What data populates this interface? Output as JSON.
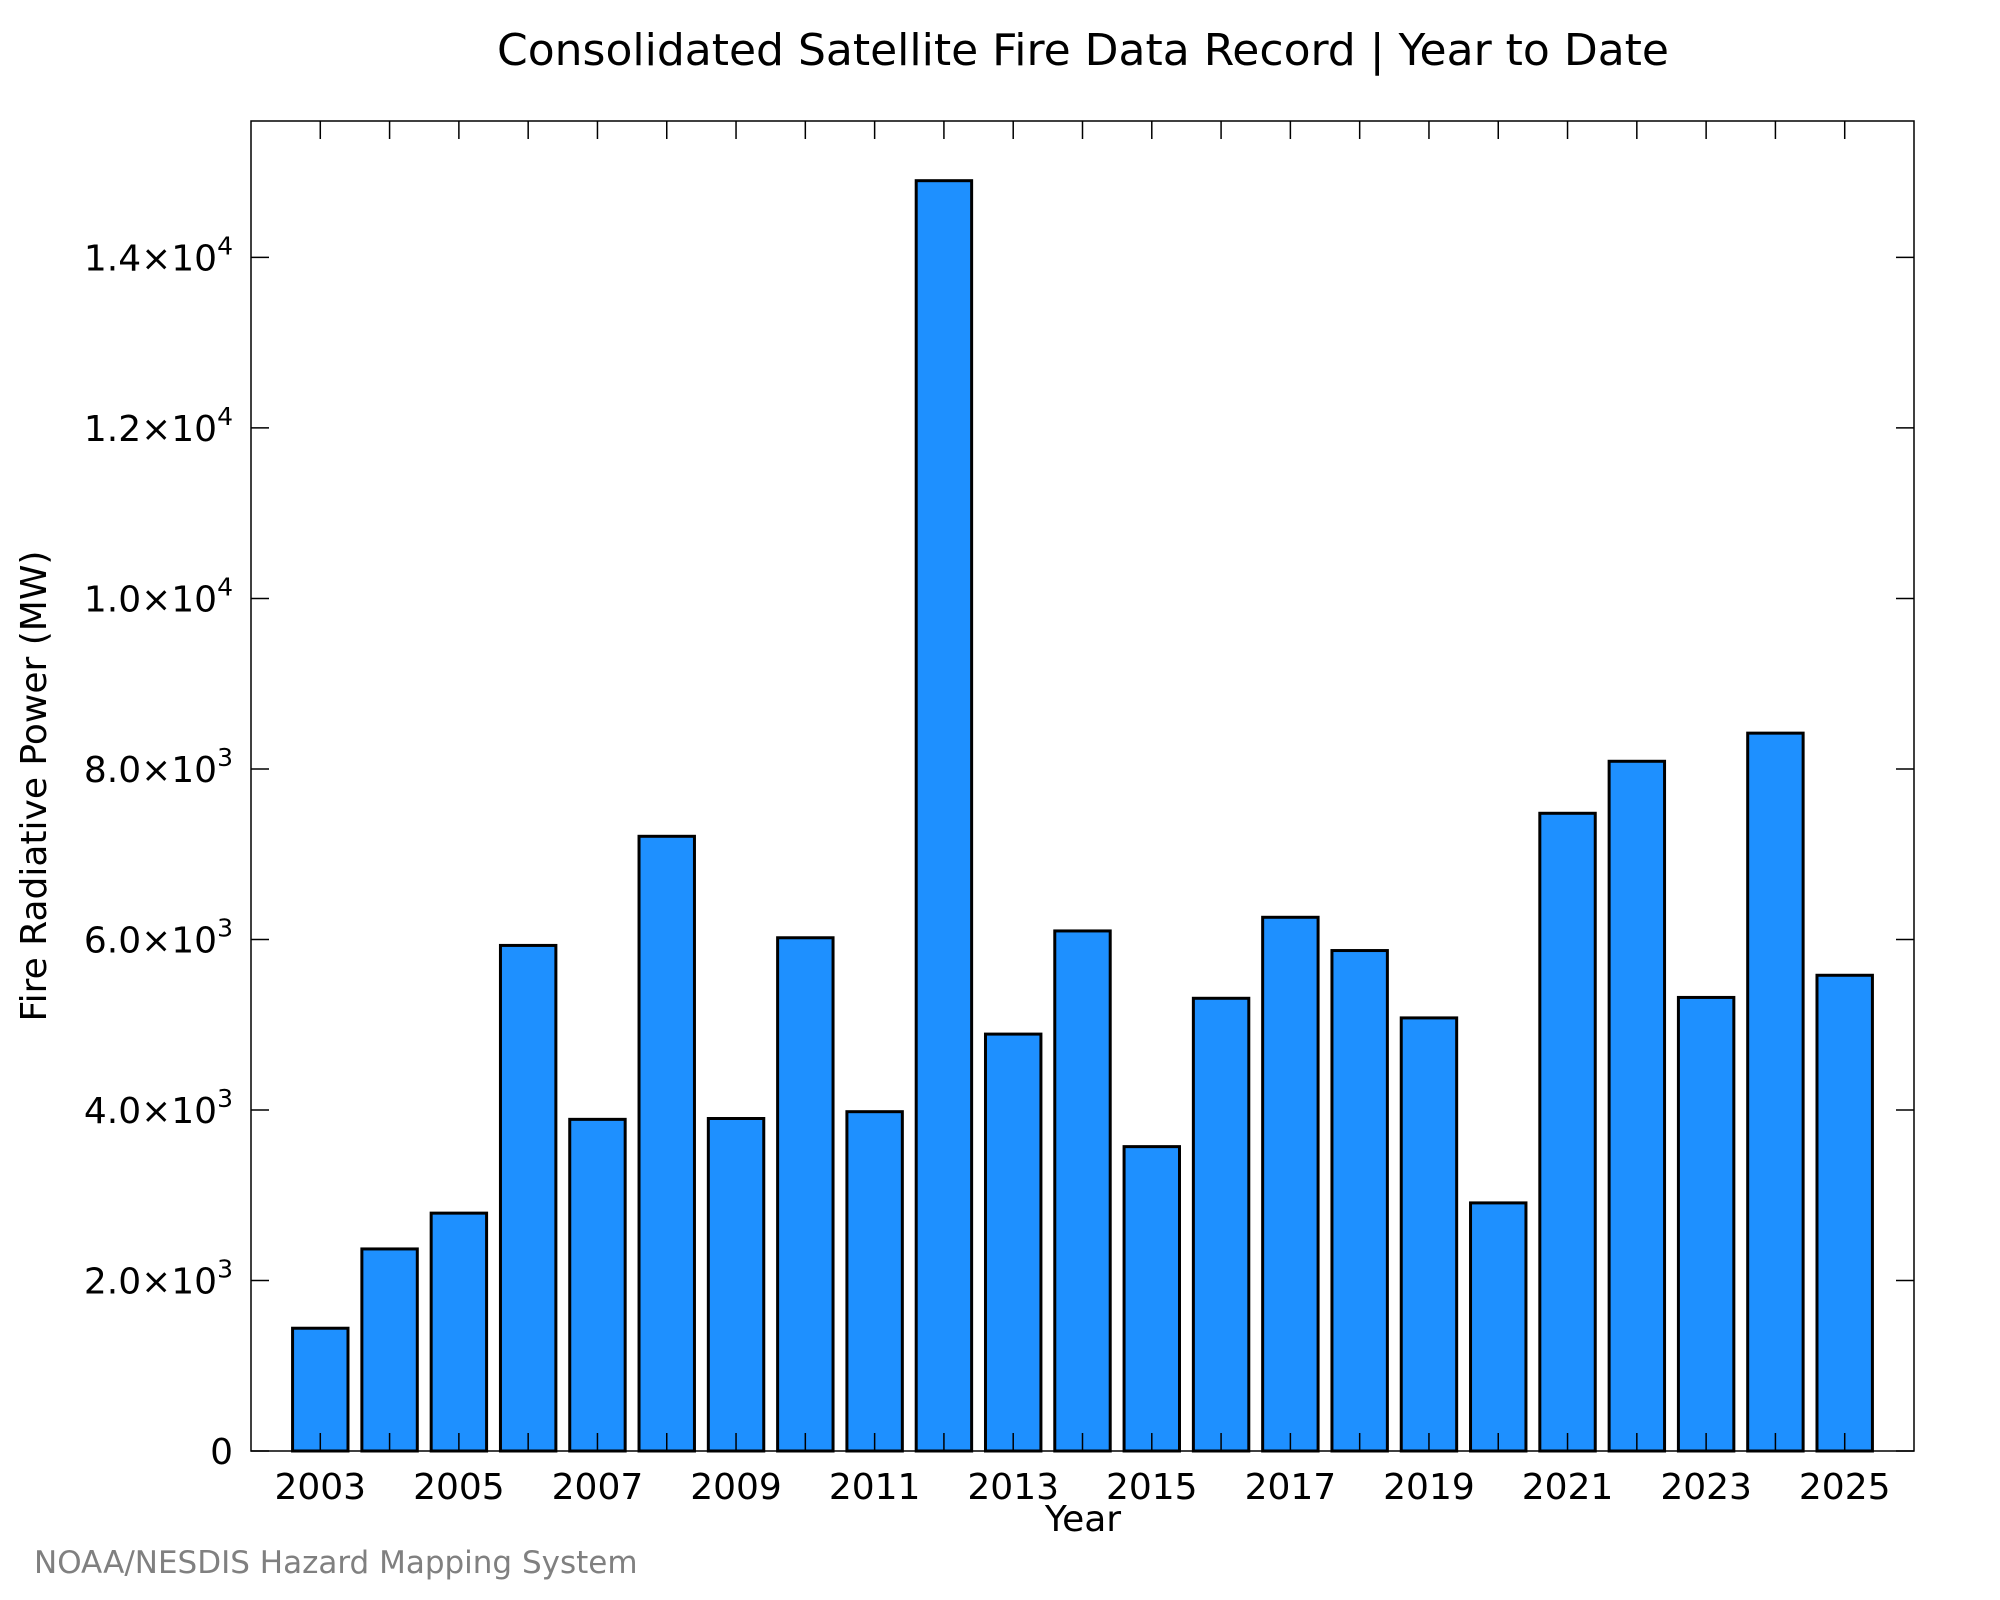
{
  "chart_data": {
    "type": "bar",
    "title": "Consolidated Satellite Fire Data Record | Year to Date",
    "xlabel": "Year",
    "ylabel": "Fire Radiative Power (MW)",
    "categories": [
      "2003",
      "2004",
      "2005",
      "2006",
      "2007",
      "2008",
      "2009",
      "2010",
      "2011",
      "2012",
      "2013",
      "2014",
      "2015",
      "2016",
      "2017",
      "2018",
      "2019",
      "2020",
      "2021",
      "2022",
      "2023",
      "2024",
      "2025"
    ],
    "values": [
      1440,
      2370,
      2790,
      5930,
      3890,
      7210,
      3900,
      6020,
      3980,
      14900,
      4890,
      6100,
      3570,
      5310,
      6260,
      5870,
      5080,
      2910,
      7480,
      8090,
      5320,
      8420,
      5580
    ],
    "x_tick_labels": [
      "2003",
      "2005",
      "2007",
      "2009",
      "2011",
      "2013",
      "2015",
      "2017",
      "2019",
      "2021",
      "2023",
      "2025"
    ],
    "y_ticks": [
      {
        "value": 0,
        "mantissa": "0",
        "exponent": ""
      },
      {
        "value": 2000,
        "mantissa": "2.0×10",
        "exponent": "3"
      },
      {
        "value": 4000,
        "mantissa": "4.0×10",
        "exponent": "3"
      },
      {
        "value": 6000,
        "mantissa": "6.0×10",
        "exponent": "3"
      },
      {
        "value": 8000,
        "mantissa": "8.0×10",
        "exponent": "3"
      },
      {
        "value": 10000,
        "mantissa": "1.0×10",
        "exponent": "4"
      },
      {
        "value": 12000,
        "mantissa": "1.2×10",
        "exponent": "4"
      },
      {
        "value": 14000,
        "mantissa": "1.4×10",
        "exponent": "4"
      }
    ],
    "ylim": [
      0,
      15600
    ],
    "xlim": [
      2002,
      2026
    ],
    "grid": false,
    "legend": "none",
    "colors": {
      "bar_fill": "#1e90ff",
      "bar_edge": "#000000"
    }
  },
  "credit": "NOAA/NESDIS Hazard Mapping System"
}
